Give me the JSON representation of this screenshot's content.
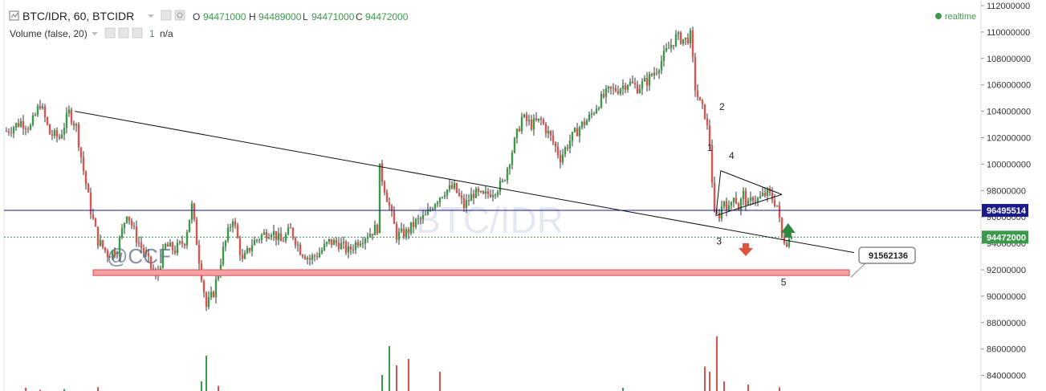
{
  "header": {
    "symbol_title": "BTC/IDR, 60, BTCIDR",
    "ohlc": {
      "o_label": "O",
      "o_value": "94471000",
      "h_label": "H",
      "h_value": "94489000",
      "l_label": "L",
      "l_value": "94471000",
      "c_label": "C",
      "c_value": "94472000"
    },
    "volume_title": "Volume (false, 20)",
    "volume_value": "1",
    "volume_extra": "n/a",
    "realtime_label": "realtime"
  },
  "watermark": "BTC/IDR",
  "signature": "@CCF",
  "price_tags": {
    "blue_line": "96495514",
    "last_price": "94472000"
  },
  "callout": "91562136",
  "wave_labels": [
    "1",
    "2",
    "3",
    "4",
    "5"
  ],
  "colors": {
    "up": "#3a9a4a",
    "down": "#d9534f",
    "blue_line": "#1a1a8c",
    "last_price": "#3a9a4a",
    "support_fill": "#f4a0a4",
    "support_stroke": "#d9534f",
    "arrow_up": "#2e8b3d",
    "arrow_down": "#e0533c"
  },
  "chart_data": {
    "type": "candlestick",
    "symbol": "BTC/IDR",
    "interval": "60",
    "y_axis": {
      "position": "right",
      "ticks": [
        112000000,
        110000000,
        108000000,
        106000000,
        104000000,
        102000000,
        100000000,
        98000000,
        96000000,
        94000000,
        92000000,
        90000000,
        88000000,
        86000000,
        84000000
      ],
      "range": [
        82500000,
        112400000
      ]
    },
    "price_path": [
      {
        "t": 0,
        "p": 102500000
      },
      {
        "t": 3,
        "p": 103200000
      },
      {
        "t": 5,
        "p": 102800000
      },
      {
        "t": 7,
        "p": 104600000
      },
      {
        "t": 9,
        "p": 102300000
      },
      {
        "t": 11,
        "p": 102000000
      },
      {
        "t": 13,
        "p": 103900000
      },
      {
        "t": 14.5,
        "p": 102800000
      },
      {
        "t": 16,
        "p": 99500000
      },
      {
        "t": 17.5,
        "p": 96500000
      },
      {
        "t": 19,
        "p": 94200000
      },
      {
        "t": 21,
        "p": 93200000
      },
      {
        "t": 23,
        "p": 93500000
      },
      {
        "t": 25,
        "p": 96400000
      },
      {
        "t": 27,
        "p": 94400000
      },
      {
        "t": 29,
        "p": 93000000
      },
      {
        "t": 31,
        "p": 91300000
      },
      {
        "t": 33,
        "p": 93800000
      },
      {
        "t": 35,
        "p": 93500000
      },
      {
        "t": 37,
        "p": 94200000
      },
      {
        "t": 38.5,
        "p": 96800000
      },
      {
        "t": 40,
        "p": 92800000
      },
      {
        "t": 41.5,
        "p": 89200000
      },
      {
        "t": 43,
        "p": 90300000
      },
      {
        "t": 45,
        "p": 93500000
      },
      {
        "t": 47,
        "p": 96000000
      },
      {
        "t": 49,
        "p": 92600000
      },
      {
        "t": 51,
        "p": 94000000
      },
      {
        "t": 53,
        "p": 94600000
      },
      {
        "t": 55,
        "p": 95000000
      },
      {
        "t": 57,
        "p": 94100000
      },
      {
        "t": 59,
        "p": 95000000
      },
      {
        "t": 61,
        "p": 93500000
      },
      {
        "t": 63,
        "p": 92800000
      },
      {
        "t": 65,
        "p": 93300000
      },
      {
        "t": 67,
        "p": 94100000
      },
      {
        "t": 69,
        "p": 94000000
      },
      {
        "t": 71,
        "p": 93400000
      },
      {
        "t": 73,
        "p": 94200000
      },
      {
        "t": 75,
        "p": 94700000
      },
      {
        "t": 77,
        "p": 95200000
      },
      {
        "t": 77.5,
        "p": 99600000
      },
      {
        "t": 79,
        "p": 97500000
      },
      {
        "t": 81,
        "p": 94600000
      },
      {
        "t": 83,
        "p": 94800000
      },
      {
        "t": 85,
        "p": 95600000
      },
      {
        "t": 87,
        "p": 96000000
      },
      {
        "t": 89,
        "p": 97200000
      },
      {
        "t": 91,
        "p": 98000000
      },
      {
        "t": 93,
        "p": 98200000
      },
      {
        "t": 95,
        "p": 96800000
      },
      {
        "t": 97,
        "p": 97800000
      },
      {
        "t": 99,
        "p": 97500000
      },
      {
        "t": 101,
        "p": 98000000
      },
      {
        "t": 103,
        "p": 98500000
      },
      {
        "t": 105,
        "p": 101000000
      },
      {
        "t": 107,
        "p": 103500000
      },
      {
        "t": 109,
        "p": 103000000
      },
      {
        "t": 111,
        "p": 103300000
      },
      {
        "t": 113,
        "p": 102000000
      },
      {
        "t": 115,
        "p": 100500000
      },
      {
        "t": 117,
        "p": 101800000
      },
      {
        "t": 119,
        "p": 102800000
      },
      {
        "t": 121,
        "p": 103500000
      },
      {
        "t": 123,
        "p": 104700000
      },
      {
        "t": 125,
        "p": 105500000
      },
      {
        "t": 127,
        "p": 105700000
      },
      {
        "t": 129,
        "p": 106200000
      },
      {
        "t": 131,
        "p": 105800000
      },
      {
        "t": 133,
        "p": 106300000
      },
      {
        "t": 135,
        "p": 107200000
      },
      {
        "t": 137,
        "p": 108500000
      },
      {
        "t": 139,
        "p": 109600000
      },
      {
        "t": 141,
        "p": 109400000
      },
      {
        "t": 142,
        "p": 109700000
      },
      {
        "t": 143,
        "p": 105800000
      },
      {
        "t": 144,
        "p": 104500000
      },
      {
        "t": 145,
        "p": 103800000
      },
      {
        "t": 146,
        "p": 101600000
      },
      {
        "t": 147,
        "p": 96000000
      },
      {
        "t": 148,
        "p": 96200000
      },
      {
        "t": 149,
        "p": 97300000
      },
      {
        "t": 150,
        "p": 96500000
      },
      {
        "t": 151,
        "p": 97800000
      },
      {
        "t": 152,
        "p": 96700000
      },
      {
        "t": 153,
        "p": 97700000
      },
      {
        "t": 154,
        "p": 96800000
      },
      {
        "t": 155,
        "p": 97500000
      },
      {
        "t": 156,
        "p": 97300000
      },
      {
        "t": 157,
        "p": 97600000
      },
      {
        "t": 158,
        "p": 97800000
      },
      {
        "t": 159,
        "p": 97400000
      },
      {
        "t": 160,
        "p": 96900000
      },
      {
        "t": 161,
        "p": 94400000
      },
      {
        "t": 162,
        "p": 94200000
      },
      {
        "t": 163,
        "p": 94472000
      }
    ],
    "volume_bars": [
      {
        "t": 4,
        "v": 0.05,
        "dir": "down"
      },
      {
        "t": 7,
        "v": 0.02,
        "dir": "down"
      },
      {
        "t": 12,
        "v": 0.03,
        "dir": "up"
      },
      {
        "t": 19,
        "v": 0.06,
        "dir": "down"
      },
      {
        "t": 40.5,
        "v": 0.15,
        "dir": "up"
      },
      {
        "t": 41.5,
        "v": 0.55,
        "dir": "up"
      },
      {
        "t": 44,
        "v": 0.08,
        "dir": "down"
      },
      {
        "t": 78,
        "v": 0.25,
        "dir": "up"
      },
      {
        "t": 79.5,
        "v": 0.7,
        "dir": "up"
      },
      {
        "t": 81,
        "v": 0.4,
        "dir": "down"
      },
      {
        "t": 83.5,
        "v": 0.5,
        "dir": "down"
      },
      {
        "t": 90,
        "v": 0.3,
        "dir": "down"
      },
      {
        "t": 128,
        "v": 0.05,
        "dir": "up"
      },
      {
        "t": 145,
        "v": 0.38,
        "dir": "down"
      },
      {
        "t": 146,
        "v": 0.3,
        "dir": "down"
      },
      {
        "t": 147.5,
        "v": 0.85,
        "dir": "down"
      },
      {
        "t": 149,
        "v": 0.15,
        "dir": "down"
      },
      {
        "t": 154,
        "v": 0.1,
        "dir": "down"
      },
      {
        "t": 160.5,
        "v": 0.06,
        "dir": "down"
      }
    ],
    "blue_horizontal_line": 96495514,
    "last_price_line": 94472000,
    "support_zone": {
      "t_start": 18,
      "t_end": 175,
      "top": 92000000,
      "bottom": 91562136
    },
    "trend_line": {
      "t1": 14.2,
      "p1": 104000000,
      "t2": 176,
      "p2": 93300000
    },
    "triangle": {
      "upper": {
        "t1": 148.3,
        "p1": 99500000,
        "t2": 161,
        "p2": 97700000
      },
      "lower": {
        "t1": 147.3,
        "p1": 96100000,
        "t2": 161,
        "p2": 97700000
      },
      "left_edge": {
        "t1": 148.3,
        "p1": 99500000,
        "t2": 147.3,
        "p2": 96100000
      }
    },
    "wave_points": [
      {
        "label": "1",
        "t": 145.5,
        "p": 101000000
      },
      {
        "label": "2",
        "t": 148,
        "p": 104100000
      },
      {
        "label": "3",
        "t": 147.4,
        "p": 93900000
      },
      {
        "label": "4",
        "t": 150,
        "p": 100400000
      },
      {
        "label": "5",
        "t": 160.8,
        "p": 90800000
      }
    ]
  }
}
